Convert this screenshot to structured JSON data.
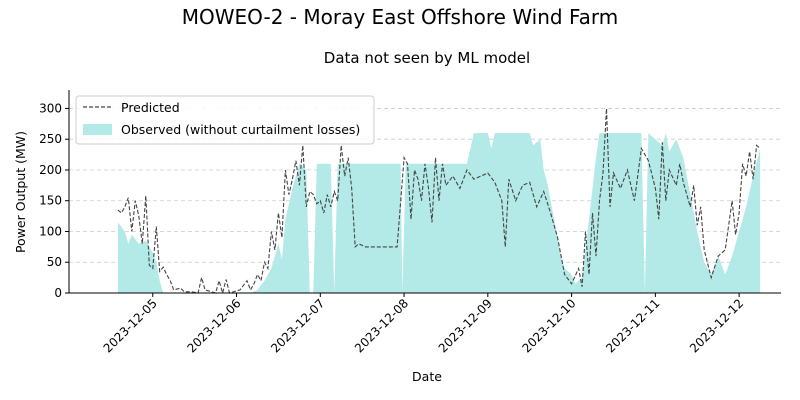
{
  "chart_data": {
    "type": "area",
    "suptitle": "MOWEO-2 - Moray East Offshore Wind Farm",
    "title": "Data not seen by ML model",
    "xlabel": "Date",
    "ylabel": "Power Output (MW)",
    "ylim": [
      0,
      330
    ],
    "xlim": [
      "2023-12-04 00:00",
      "2023-12-12 12:00"
    ],
    "x_ticks": [
      "2023-12-05",
      "2023-12-06",
      "2023-12-07",
      "2023-12-08",
      "2023-12-09",
      "2023-12-10",
      "2023-12-11",
      "2023-12-12"
    ],
    "y_ticks": [
      0,
      50,
      100,
      150,
      200,
      250,
      300
    ],
    "grid": "y-dashed",
    "legend_position": "upper left",
    "colors": {
      "predicted": "#444444",
      "observed": "#b3e9e6",
      "grid": "#cccccc"
    },
    "series": [
      {
        "name": "Predicted",
        "style": "dashed-line",
        "points": [
          [
            "2023-12-04 14:00",
            135
          ],
          [
            "2023-12-04 15:00",
            130
          ],
          [
            "2023-12-04 16:00",
            140
          ],
          [
            "2023-12-04 17:00",
            155
          ],
          [
            "2023-12-04 18:00",
            100
          ],
          [
            "2023-12-04 19:00",
            150
          ],
          [
            "2023-12-04 20:00",
            125
          ],
          [
            "2023-12-04 21:00",
            80
          ],
          [
            "2023-12-04 22:00",
            158
          ],
          [
            "2023-12-04 23:00",
            45
          ],
          [
            "2023-12-05 00:00",
            40
          ],
          [
            "2023-12-05 01:00",
            108
          ],
          [
            "2023-12-05 02:00",
            35
          ],
          [
            "2023-12-05 03:00",
            42
          ],
          [
            "2023-12-05 04:00",
            30
          ],
          [
            "2023-12-05 05:00",
            20
          ],
          [
            "2023-12-05 06:00",
            5
          ],
          [
            "2023-12-05 08:00",
            8
          ],
          [
            "2023-12-05 09:00",
            2
          ],
          [
            "2023-12-05 11:00",
            2
          ],
          [
            "2023-12-05 13:00",
            0
          ],
          [
            "2023-12-05 14:00",
            25
          ],
          [
            "2023-12-05 15:00",
            5
          ],
          [
            "2023-12-05 18:00",
            0
          ],
          [
            "2023-12-05 19:00",
            20
          ],
          [
            "2023-12-05 20:00",
            0
          ],
          [
            "2023-12-05 21:00",
            22
          ],
          [
            "2023-12-05 22:00",
            0
          ],
          [
            "2023-12-06 01:00",
            5
          ],
          [
            "2023-12-06 03:00",
            20
          ],
          [
            "2023-12-06 04:00",
            5
          ],
          [
            "2023-12-06 05:00",
            15
          ],
          [
            "2023-12-06 06:00",
            30
          ],
          [
            "2023-12-06 07:00",
            20
          ],
          [
            "2023-12-06 08:00",
            50
          ],
          [
            "2023-12-06 09:00",
            40
          ],
          [
            "2023-12-06 10:00",
            100
          ],
          [
            "2023-12-06 11:00",
            70
          ],
          [
            "2023-12-06 12:00",
            130
          ],
          [
            "2023-12-06 13:00",
            90
          ],
          [
            "2023-12-06 14:00",
            200
          ],
          [
            "2023-12-06 15:00",
            160
          ],
          [
            "2023-12-06 16:00",
            185
          ],
          [
            "2023-12-06 17:00",
            215
          ],
          [
            "2023-12-06 18:00",
            175
          ],
          [
            "2023-12-06 19:00",
            240
          ],
          [
            "2023-12-06 20:00",
            140
          ],
          [
            "2023-12-06 21:00",
            165
          ],
          [
            "2023-12-06 22:00",
            160
          ],
          [
            "2023-12-06 23:00",
            145
          ],
          [
            "2023-12-07 00:00",
            150
          ],
          [
            "2023-12-07 01:00",
            130
          ],
          [
            "2023-12-07 02:00",
            160
          ],
          [
            "2023-12-07 03:00",
            140
          ],
          [
            "2023-12-07 04:00",
            165
          ],
          [
            "2023-12-07 05:00",
            150
          ],
          [
            "2023-12-07 06:00",
            240
          ],
          [
            "2023-12-07 07:00",
            190
          ],
          [
            "2023-12-07 08:00",
            220
          ],
          [
            "2023-12-07 09:00",
            170
          ],
          [
            "2023-12-07 10:00",
            75
          ],
          [
            "2023-12-07 11:00",
            80
          ],
          [
            "2023-12-07 13:00",
            75
          ],
          [
            "2023-12-07 16:00",
            75
          ],
          [
            "2023-12-07 20:00",
            75
          ],
          [
            "2023-12-07 22:00",
            75
          ],
          [
            "2023-12-08 00:00",
            220
          ],
          [
            "2023-12-08 01:00",
            210
          ],
          [
            "2023-12-08 02:00",
            120
          ],
          [
            "2023-12-08 03:00",
            200
          ],
          [
            "2023-12-08 04:00",
            185
          ],
          [
            "2023-12-08 05:00",
            150
          ],
          [
            "2023-12-08 06:00",
            210
          ],
          [
            "2023-12-08 07:00",
            170
          ],
          [
            "2023-12-08 08:00",
            115
          ],
          [
            "2023-12-08 09:00",
            220
          ],
          [
            "2023-12-08 10:00",
            150
          ],
          [
            "2023-12-08 11:00",
            210
          ],
          [
            "2023-12-08 12:00",
            175
          ],
          [
            "2023-12-08 14:00",
            190
          ],
          [
            "2023-12-08 16:00",
            170
          ],
          [
            "2023-12-08 18:00",
            200
          ],
          [
            "2023-12-08 20:00",
            185
          ],
          [
            "2023-12-08 22:00",
            190
          ],
          [
            "2023-12-09 00:00",
            195
          ],
          [
            "2023-12-09 02:00",
            180
          ],
          [
            "2023-12-09 04:00",
            150
          ],
          [
            "2023-12-09 05:00",
            75
          ],
          [
            "2023-12-09 06:00",
            185
          ],
          [
            "2023-12-09 08:00",
            150
          ],
          [
            "2023-12-09 10:00",
            175
          ],
          [
            "2023-12-09 12:00",
            180
          ],
          [
            "2023-12-09 14:00",
            140
          ],
          [
            "2023-12-09 16:00",
            165
          ],
          [
            "2023-12-09 18:00",
            130
          ],
          [
            "2023-12-09 20:00",
            90
          ],
          [
            "2023-12-09 21:00",
            60
          ],
          [
            "2023-12-09 22:00",
            30
          ],
          [
            "2023-12-10 00:00",
            15
          ],
          [
            "2023-12-10 02:00",
            40
          ],
          [
            "2023-12-10 03:00",
            10
          ],
          [
            "2023-12-10 04:00",
            100
          ],
          [
            "2023-12-10 05:00",
            30
          ],
          [
            "2023-12-10 06:00",
            130
          ],
          [
            "2023-12-10 07:00",
            60
          ],
          [
            "2023-12-10 08:00",
            150
          ],
          [
            "2023-12-10 09:00",
            195
          ],
          [
            "2023-12-10 10:00",
            300
          ],
          [
            "2023-12-10 11:00",
            140
          ],
          [
            "2023-12-10 12:00",
            195
          ],
          [
            "2023-12-10 14:00",
            170
          ],
          [
            "2023-12-10 16:00",
            200
          ],
          [
            "2023-12-10 18:00",
            150
          ],
          [
            "2023-12-10 20:00",
            235
          ],
          [
            "2023-12-10 22:00",
            215
          ],
          [
            "2023-12-11 00:00",
            170
          ],
          [
            "2023-12-11 01:00",
            120
          ],
          [
            "2023-12-11 02:00",
            245
          ],
          [
            "2023-12-11 03:00",
            150
          ],
          [
            "2023-12-11 04:00",
            200
          ],
          [
            "2023-12-11 06:00",
            175
          ],
          [
            "2023-12-11 07:00",
            210
          ],
          [
            "2023-12-11 08:00",
            180
          ],
          [
            "2023-12-11 10:00",
            140
          ],
          [
            "2023-12-11 11:00",
            175
          ],
          [
            "2023-12-11 12:00",
            110
          ],
          [
            "2023-12-11 13:00",
            140
          ],
          [
            "2023-12-11 14:00",
            70
          ],
          [
            "2023-12-11 16:00",
            25
          ],
          [
            "2023-12-11 18:00",
            60
          ],
          [
            "2023-12-11 20:00",
            70
          ],
          [
            "2023-12-11 22:00",
            150
          ],
          [
            "2023-12-11 23:00",
            95
          ],
          [
            "2023-12-12 00:00",
            130
          ],
          [
            "2023-12-12 01:00",
            210
          ],
          [
            "2023-12-12 02:00",
            190
          ],
          [
            "2023-12-12 03:00",
            230
          ],
          [
            "2023-12-12 04:00",
            185
          ],
          [
            "2023-12-12 05:00",
            240
          ],
          [
            "2023-12-12 06:00",
            235
          ]
        ]
      },
      {
        "name": "Observed (without curtailment losses)",
        "style": "filled-area",
        "points": [
          [
            "2023-12-04 14:00",
            115
          ],
          [
            "2023-12-04 16:00",
            100
          ],
          [
            "2023-12-04 17:00",
            80
          ],
          [
            "2023-12-04 18:00",
            95
          ],
          [
            "2023-12-04 20:00",
            80
          ],
          [
            "2023-12-04 22:00",
            85
          ],
          [
            "2023-12-05 00:00",
            65
          ],
          [
            "2023-12-05 01:00",
            50
          ],
          [
            "2023-12-05 02:00",
            20
          ],
          [
            "2023-12-05 03:00",
            0
          ],
          [
            "2023-12-06 04:00",
            0
          ],
          [
            "2023-12-06 06:00",
            5
          ],
          [
            "2023-12-06 08:00",
            20
          ],
          [
            "2023-12-06 10:00",
            40
          ],
          [
            "2023-12-06 12:00",
            80
          ],
          [
            "2023-12-06 13:00",
            55
          ],
          [
            "2023-12-06 14:00",
            120
          ],
          [
            "2023-12-06 16:00",
            170
          ],
          [
            "2023-12-06 18:00",
            210
          ],
          [
            "2023-12-06 20:00",
            200
          ],
          [
            "2023-12-06 21:00",
            0
          ],
          [
            "2023-12-06 22:00",
            0
          ],
          [
            "2023-12-06 23:00",
            210
          ],
          [
            "2023-12-07 03:00",
            210
          ],
          [
            "2023-12-07 04:00",
            0
          ],
          [
            "2023-12-07 05:00",
            210
          ],
          [
            "2023-12-07 23:00",
            210
          ],
          [
            "2023-12-07 23:30",
            0
          ],
          [
            "2023-12-08 00:30",
            210
          ],
          [
            "2023-12-08 18:00",
            210
          ],
          [
            "2023-12-08 20:00",
            260
          ],
          [
            "2023-12-09 00:00",
            260
          ],
          [
            "2023-12-09 01:00",
            235
          ],
          [
            "2023-12-09 02:00",
            260
          ],
          [
            "2023-12-09 12:00",
            260
          ],
          [
            "2023-12-09 13:00",
            240
          ],
          [
            "2023-12-09 15:00",
            250
          ],
          [
            "2023-12-09 16:00",
            200
          ],
          [
            "2023-12-09 17:00",
            180
          ],
          [
            "2023-12-09 18:00",
            150
          ],
          [
            "2023-12-09 20:00",
            90
          ],
          [
            "2023-12-09 21:00",
            60
          ],
          [
            "2023-12-09 22:00",
            40
          ],
          [
            "2023-12-10 00:00",
            30
          ],
          [
            "2023-12-10 01:00",
            15
          ],
          [
            "2023-12-10 03:00",
            25
          ],
          [
            "2023-12-10 05:00",
            120
          ],
          [
            "2023-12-10 07:00",
            220
          ],
          [
            "2023-12-10 08:00",
            260
          ],
          [
            "2023-12-10 20:00",
            260
          ],
          [
            "2023-12-10 21:00",
            0
          ],
          [
            "2023-12-10 22:00",
            260
          ],
          [
            "2023-12-11 02:00",
            240
          ],
          [
            "2023-12-11 03:00",
            260
          ],
          [
            "2023-12-11 04:00",
            230
          ],
          [
            "2023-12-11 06:00",
            250
          ],
          [
            "2023-12-11 08:00",
            220
          ],
          [
            "2023-12-11 10:00",
            160
          ],
          [
            "2023-12-11 12:00",
            100
          ],
          [
            "2023-12-11 14:00",
            50
          ],
          [
            "2023-12-11 16:00",
            30
          ],
          [
            "2023-12-11 18:00",
            60
          ],
          [
            "2023-12-11 20:00",
            30
          ],
          [
            "2023-12-11 22:00",
            60
          ],
          [
            "2023-12-12 00:00",
            100
          ],
          [
            "2023-12-12 02:00",
            140
          ],
          [
            "2023-12-12 04:00",
            190
          ],
          [
            "2023-12-12 06:00",
            235
          ]
        ]
      }
    ]
  }
}
